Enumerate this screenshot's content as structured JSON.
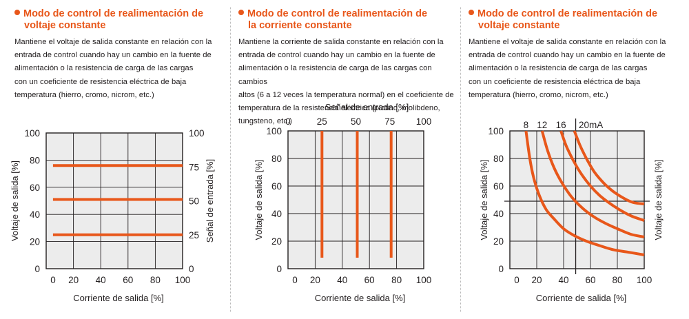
{
  "panels": [
    {
      "title_line1": "Modo de control de realimentación de",
      "title_line2": "voltaje constante",
      "description": [
        "Mantiene el voltaje de salida constante en relación con la",
        "entrada de control cuando hay un cambio en la fuente de",
        "alimentación o la resistencia de carga de las cargas",
        "con un coeficiente de resistencia eléctrica de baja",
        "temperatura (hierro, cromo, nicrom, etc.)"
      ]
    },
    {
      "title_line1": "Modo de control de realimentación de",
      "title_line2": "la corriente constante",
      "description": [
        "Mantiene la corriente de salida constante en relación con la",
        "entrada de control cuando hay un cambio en la fuente de",
        "alimentación o la resistencia de carga de las cargas con cambios",
        "altos (6 a 12 veces la temperatura normal) en el coeficiente de",
        "temperatura de la resistencia eléctrica (platino, molibdeno,",
        "tungsteno, etc.)"
      ]
    },
    {
      "title_line1": "Modo de control de realimentación de",
      "title_line2": "voltaje constante",
      "description": [
        "Mantiene el voltaje de salida constante en relación con la",
        "entrada de control cuando hay un cambio en la fuente de",
        "alimentación o la resistencia de carga de las cargas",
        "con un coeficiente de resistencia eléctrica de baja",
        "temperatura (hierro, cromo, nicrom, etc.)"
      ]
    }
  ],
  "colors": {
    "accent": "#e8571a",
    "plot_bg": "#ececec",
    "grid": "#231f20"
  },
  "chart_data": [
    {
      "type": "line",
      "title": "",
      "xlabel": "Corriente de salida [%]",
      "ylabel": "Voltaje de salida [%]",
      "y2label": "Señal de entrada [%]",
      "xlim": [
        0,
        100
      ],
      "ylim": [
        0,
        100
      ],
      "xticks": [
        "0",
        "20",
        "40",
        "60",
        "80",
        "100"
      ],
      "yticks": [
        "0",
        "20",
        "40",
        "60",
        "80",
        "100"
      ],
      "y2ticks": [
        "0",
        "25",
        "50",
        "75",
        "100"
      ],
      "grid": true,
      "series": [
        {
          "x": [
            5,
            100
          ],
          "y": [
            25,
            25
          ]
        },
        {
          "x": [
            5,
            100
          ],
          "y": [
            51,
            51
          ]
        },
        {
          "x": [
            5,
            100
          ],
          "y": [
            76,
            76
          ]
        }
      ]
    },
    {
      "type": "line",
      "title": "",
      "xlabel": "Corriente de salida [%]",
      "ylabel": "Voltaje de salida [%]",
      "x2label": "Señal de entrada [%]",
      "xlim": [
        0,
        100
      ],
      "ylim": [
        0,
        100
      ],
      "xticks": [
        "0",
        "20",
        "40",
        "60",
        "80",
        "100"
      ],
      "yticks": [
        "0",
        "20",
        "40",
        "60",
        "80",
        "100"
      ],
      "x2ticks": [
        "0",
        "25",
        "50",
        "75",
        "100"
      ],
      "grid": true,
      "series": [
        {
          "x": [
            25,
            25
          ],
          "y": [
            8,
            100
          ]
        },
        {
          "x": [
            51,
            51
          ],
          "y": [
            8,
            100
          ]
        },
        {
          "x": [
            76,
            76
          ],
          "y": [
            8,
            100
          ]
        }
      ]
    },
    {
      "type": "line",
      "title": "",
      "xlabel": "Corriente de salida [%]",
      "ylabel": "Voltaje de salida [%]",
      "y2label": "Voltaje de salida [%]",
      "xlim": [
        0,
        100
      ],
      "ylim": [
        0,
        100
      ],
      "xticks": [
        "0",
        "20",
        "40",
        "60",
        "80",
        "100"
      ],
      "yticks": [
        "0",
        "20",
        "40",
        "60",
        "80",
        "100"
      ],
      "grid": true,
      "reference_lines": {
        "x": 49,
        "y": 49
      },
      "series": [
        {
          "name": "8",
          "x": [
            12,
            15,
            18,
            22,
            27,
            33,
            40,
            48,
            57,
            66,
            76,
            88,
            100
          ],
          "y": [
            100,
            79,
            65,
            53,
            43,
            36,
            29,
            24,
            20,
            17,
            14,
            12,
            10
          ]
        },
        {
          "name": "12",
          "x": [
            24,
            28,
            33,
            39,
            46,
            54,
            62,
            71,
            80,
            90,
            100
          ],
          "y": [
            100,
            86,
            73,
            62,
            52,
            44,
            38,
            33,
            29,
            25,
            23
          ]
        },
        {
          "name": "16",
          "x": [
            38,
            42,
            47,
            53,
            60,
            67,
            75,
            83,
            91,
            100
          ],
          "y": [
            100,
            89,
            79,
            69,
            60,
            53,
            47,
            42,
            38,
            35
          ]
        },
        {
          "name": "20mA",
          "x": [
            48,
            52,
            57,
            63,
            70,
            77,
            85,
            92,
            100
          ],
          "y": [
            100,
            90,
            80,
            70,
            62,
            56,
            51,
            48,
            47
          ]
        }
      ]
    }
  ]
}
